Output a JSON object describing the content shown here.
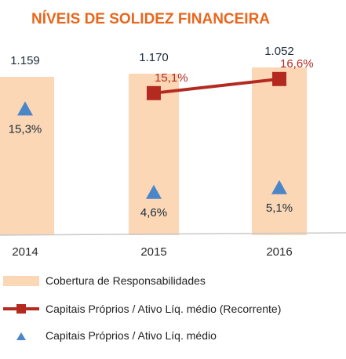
{
  "chart_data": {
    "type": "bar",
    "title": "NÍVEIS DE SOLIDEZ FINANCEIRA",
    "categories": [
      "2014",
      "2015",
      "2016"
    ],
    "bars": {
      "name": "Cobertura de Responsabilidades",
      "values": [
        1159,
        1170,
        1052
      ],
      "labels": [
        "1.159",
        "1.170",
        "1.052"
      ],
      "color": "#fbd7b5"
    },
    "series_line": {
      "name": "Capitais Próprios / Ativo Líq. médio (Recorrente)",
      "values": [
        null,
        15.1,
        16.6
      ],
      "labels": [
        "",
        "15,1%",
        "16,6%"
      ],
      "color": "#b52a20"
    },
    "series_triangle": {
      "name": "Capitais Próprios / Ativo Líq. médio",
      "values": [
        15.3,
        4.6,
        5.1
      ],
      "labels": [
        "15,3%",
        "4,6%",
        "5,1%"
      ],
      "color": "#4a86c8"
    },
    "bars_ylim": [
      0,
      1300
    ],
    "pct_ylim": [
      0,
      20
    ],
    "title_color": "#e8671e",
    "legend_position": "bottom"
  }
}
